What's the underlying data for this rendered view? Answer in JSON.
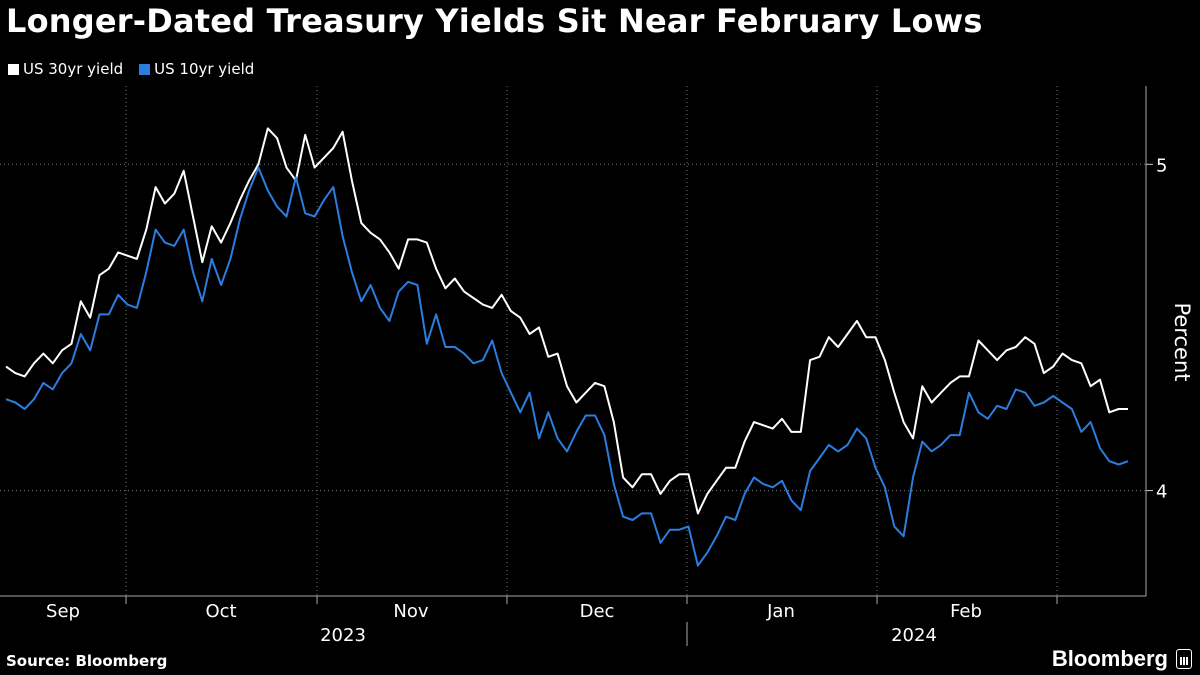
{
  "chart_data": {
    "type": "line",
    "title": "Longer-Dated Treasury Yields Sit Near February Lows",
    "ylabel": "Percent",
    "ylim": [
      3.68,
      5.24
    ],
    "yticks": [
      4,
      5
    ],
    "x_month_labels": [
      "Sep",
      "Oct",
      "Nov",
      "Dec",
      "Jan",
      "Feb"
    ],
    "x_year_labels": [
      "2023",
      "2024"
    ],
    "grid": true,
    "legend": "top-left",
    "colors": {
      "background": "#000000",
      "us30": "#ffffff",
      "us10": "#2b7de0"
    },
    "series": [
      {
        "name": "US 30yr yield",
        "color": "#ffffff",
        "values": [
          4.38,
          4.36,
          4.35,
          4.39,
          4.42,
          4.39,
          4.43,
          4.45,
          4.58,
          4.53,
          4.66,
          4.68,
          4.73,
          4.72,
          4.71,
          4.8,
          4.93,
          4.88,
          4.91,
          4.98,
          4.84,
          4.7,
          4.81,
          4.76,
          4.82,
          4.89,
          4.95,
          5.0,
          5.11,
          5.08,
          4.99,
          4.95,
          5.09,
          4.99,
          5.02,
          5.05,
          5.1,
          4.95,
          4.82,
          4.79,
          4.77,
          4.73,
          4.68,
          4.77,
          4.77,
          4.76,
          4.68,
          4.62,
          4.65,
          4.61,
          4.59,
          4.57,
          4.56,
          4.6,
          4.55,
          4.53,
          4.48,
          4.5,
          4.41,
          4.42,
          4.32,
          4.27,
          4.3,
          4.33,
          4.32,
          4.21,
          4.04,
          4.01,
          4.05,
          4.05,
          3.99,
          4.03,
          4.05,
          4.05,
          3.93,
          3.99,
          4.03,
          4.07,
          4.07,
          4.15,
          4.21,
          4.2,
          4.19,
          4.22,
          4.18,
          4.18,
          4.4,
          4.41,
          4.47,
          4.44,
          4.48,
          4.52,
          4.47,
          4.47,
          4.4,
          4.3,
          4.21,
          4.16,
          4.32,
          4.27,
          4.3,
          4.33,
          4.35,
          4.35,
          4.46,
          4.43,
          4.4,
          4.43,
          4.44,
          4.47,
          4.45,
          4.36,
          4.38,
          4.42,
          4.4,
          4.39,
          4.32,
          4.34,
          4.24,
          4.25,
          4.25
        ]
      },
      {
        "name": "US 10yr yield",
        "color": "#2b7de0",
        "values": [
          4.28,
          4.27,
          4.25,
          4.28,
          4.33,
          4.31,
          4.36,
          4.39,
          4.48,
          4.43,
          4.54,
          4.54,
          4.6,
          4.57,
          4.56,
          4.67,
          4.8,
          4.76,
          4.75,
          4.8,
          4.67,
          4.58,
          4.71,
          4.63,
          4.71,
          4.83,
          4.92,
          4.99,
          4.92,
          4.87,
          4.84,
          4.96,
          4.85,
          4.84,
          4.89,
          4.93,
          4.78,
          4.67,
          4.58,
          4.63,
          4.56,
          4.52,
          4.61,
          4.64,
          4.63,
          4.45,
          4.54,
          4.44,
          4.44,
          4.42,
          4.39,
          4.4,
          4.46,
          4.36,
          4.3,
          4.24,
          4.3,
          4.16,
          4.24,
          4.16,
          4.12,
          4.18,
          4.23,
          4.23,
          4.17,
          4.02,
          3.92,
          3.91,
          3.93,
          3.93,
          3.84,
          3.88,
          3.88,
          3.89,
          3.77,
          3.81,
          3.86,
          3.92,
          3.91,
          3.99,
          4.04,
          4.02,
          4.01,
          4.03,
          3.97,
          3.94,
          4.06,
          4.1,
          4.14,
          4.12,
          4.14,
          4.19,
          4.16,
          4.07,
          4.01,
          3.89,
          3.86,
          4.04,
          4.15,
          4.12,
          4.14,
          4.17,
          4.17,
          4.3,
          4.24,
          4.22,
          4.26,
          4.25,
          4.31,
          4.3,
          4.26,
          4.27,
          4.29,
          4.27,
          4.25,
          4.18,
          4.21,
          4.13,
          4.09,
          4.08,
          4.09
        ]
      }
    ]
  },
  "footer": {
    "source": "Source: Bloomberg",
    "brand": "Bloomberg"
  }
}
